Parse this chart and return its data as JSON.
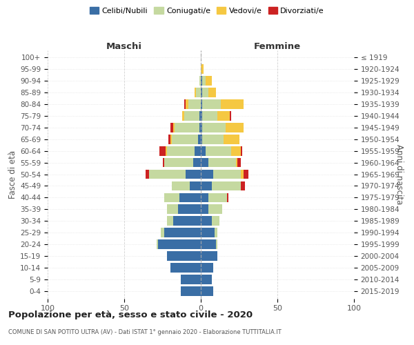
{
  "age_groups": [
    "0-4",
    "5-9",
    "10-14",
    "15-19",
    "20-24",
    "25-29",
    "30-34",
    "35-39",
    "40-44",
    "45-49",
    "50-54",
    "55-59",
    "60-64",
    "65-69",
    "70-74",
    "75-79",
    "80-84",
    "85-89",
    "90-94",
    "95-99",
    "100+"
  ],
  "birth_years": [
    "2015-2019",
    "2010-2014",
    "2005-2009",
    "2000-2004",
    "1995-1999",
    "1990-1994",
    "1985-1989",
    "1980-1984",
    "1975-1979",
    "1970-1974",
    "1965-1969",
    "1960-1964",
    "1955-1959",
    "1950-1954",
    "1945-1949",
    "1940-1944",
    "1935-1939",
    "1930-1934",
    "1925-1929",
    "1920-1924",
    "≤ 1919"
  ],
  "maschi": {
    "celibi": [
      13,
      13,
      20,
      22,
      28,
      24,
      18,
      15,
      14,
      7,
      10,
      5,
      4,
      2,
      1,
      1,
      0,
      0,
      0,
      0,
      0
    ],
    "coniugati": [
      0,
      0,
      0,
      0,
      1,
      2,
      4,
      7,
      10,
      12,
      24,
      19,
      18,
      17,
      16,
      10,
      8,
      3,
      1,
      0,
      0
    ],
    "vedovi": [
      0,
      0,
      0,
      0,
      0,
      0,
      0,
      0,
      0,
      0,
      0,
      0,
      1,
      1,
      1,
      1,
      2,
      1,
      0,
      0,
      0
    ],
    "divorziati": [
      0,
      0,
      0,
      0,
      0,
      0,
      0,
      0,
      0,
      0,
      2,
      1,
      4,
      1,
      2,
      0,
      1,
      0,
      0,
      0,
      0
    ]
  },
  "femmine": {
    "nubili": [
      8,
      7,
      8,
      11,
      10,
      9,
      7,
      5,
      5,
      7,
      8,
      5,
      3,
      1,
      1,
      1,
      1,
      1,
      1,
      0,
      0
    ],
    "coniugate": [
      0,
      0,
      0,
      0,
      1,
      2,
      5,
      9,
      12,
      19,
      18,
      18,
      17,
      14,
      15,
      10,
      12,
      4,
      2,
      0,
      0
    ],
    "vedove": [
      0,
      0,
      0,
      0,
      0,
      0,
      0,
      0,
      0,
      0,
      2,
      1,
      6,
      10,
      12,
      8,
      15,
      5,
      4,
      2,
      0
    ],
    "divorziate": [
      0,
      0,
      0,
      0,
      0,
      0,
      0,
      0,
      1,
      3,
      3,
      2,
      1,
      0,
      0,
      1,
      0,
      0,
      0,
      0,
      0
    ]
  },
  "colors": {
    "celibi": "#3a6ea5",
    "coniugati": "#c5d9a0",
    "vedovi": "#f5c842",
    "divorziati": "#cc2222"
  },
  "xlim": 100,
  "title": "Popolazione per età, sesso e stato civile - 2020",
  "subtitle": "COMUNE DI SAN POTITO ULTRA (AV) - Dati ISTAT 1° gennaio 2020 - Elaborazione TUTTITALIA.IT",
  "ylabel_left": "Fasce di età",
  "ylabel_right": "Anni di nascita",
  "xlabel_left": "Maschi",
  "xlabel_right": "Femmine",
  "background_color": "#ffffff",
  "grid_color": "#cccccc"
}
